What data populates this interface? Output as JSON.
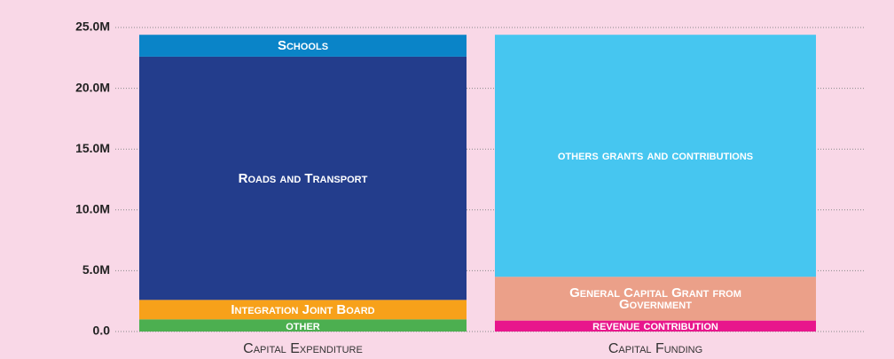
{
  "chart_data": {
    "type": "stacked-bar",
    "categories": [
      "Capital Expenditure",
      "Capital Funding"
    ],
    "series": [
      {
        "name": "other",
        "color": "#4caf50",
        "values": [
          1000000,
          null
        ]
      },
      {
        "name": "Integration Joint Board",
        "color": "#f7a11a",
        "values": [
          1600000,
          null
        ]
      },
      {
        "name": "Roads and Transport",
        "color": "#233d8c",
        "values": [
          20000000,
          null
        ]
      },
      {
        "name": "Schools",
        "color": "#0a84c8",
        "values": [
          1800000,
          null
        ]
      },
      {
        "name": "revenue contribution",
        "color": "#e8168c",
        "values": [
          null,
          900000
        ]
      },
      {
        "name": "General Capital Grant from Government",
        "color": "#eba089",
        "values": [
          null,
          3600000
        ]
      },
      {
        "name": "others grants and contributions",
        "color": "#46c6f0",
        "values": [
          null,
          19900000
        ]
      }
    ],
    "ylim": [
      0,
      25000000
    ],
    "yticks": [
      {
        "value": 0,
        "label": "0.0"
      },
      {
        "value": 5000000,
        "label": "5.0M"
      },
      {
        "value": 10000000,
        "label": "10.0M"
      },
      {
        "value": 15000000,
        "label": "15.0M"
      },
      {
        "value": 20000000,
        "label": "20.0M"
      },
      {
        "value": 25000000,
        "label": "25.0M"
      }
    ],
    "grid": true
  }
}
